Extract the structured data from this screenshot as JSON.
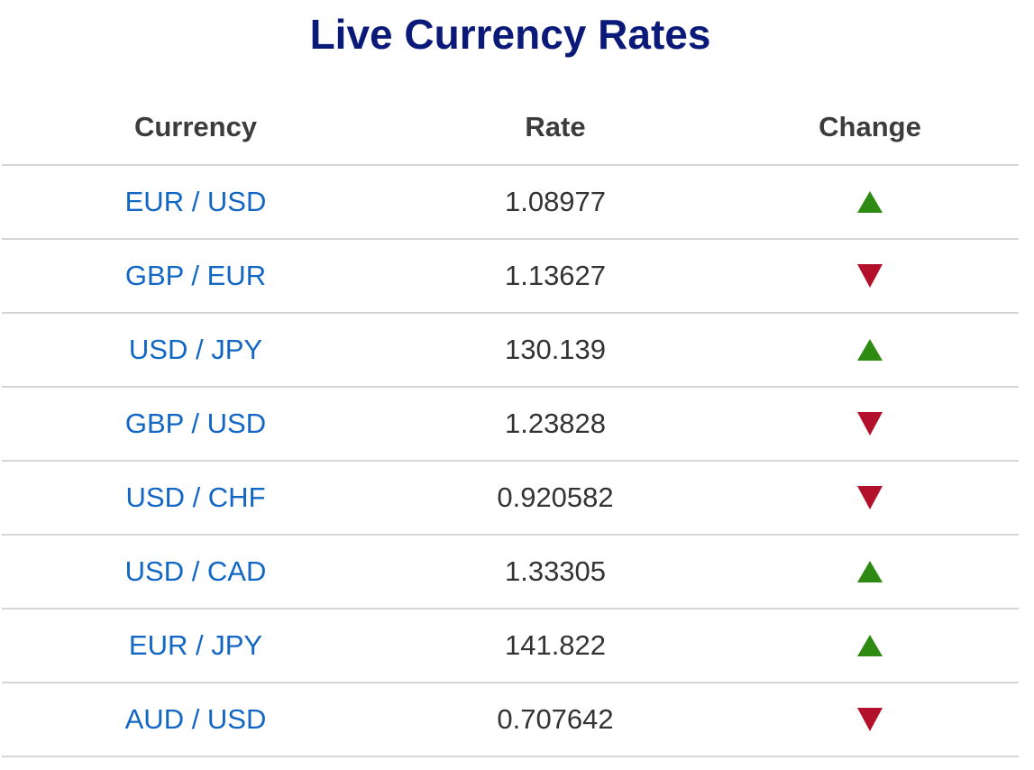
{
  "title": "Live Currency Rates",
  "headers": {
    "currency": "Currency",
    "rate": "Rate",
    "change": "Change"
  },
  "colors": {
    "up": "#2f8a13",
    "down": "#b2102b",
    "link": "#1266c4",
    "title": "#0b1a78"
  },
  "rows": [
    {
      "pair": "EUR / USD",
      "rate": "1.08977",
      "change": "up"
    },
    {
      "pair": "GBP / EUR",
      "rate": "1.13627",
      "change": "down"
    },
    {
      "pair": "USD / JPY",
      "rate": "130.139",
      "change": "up"
    },
    {
      "pair": "GBP / USD",
      "rate": "1.23828",
      "change": "down"
    },
    {
      "pair": "USD / CHF",
      "rate": "0.920582",
      "change": "down"
    },
    {
      "pair": "USD / CAD",
      "rate": "1.33305",
      "change": "up"
    },
    {
      "pair": "EUR / JPY",
      "rate": "141.822",
      "change": "up"
    },
    {
      "pair": "AUD / USD",
      "rate": "0.707642",
      "change": "down"
    }
  ]
}
